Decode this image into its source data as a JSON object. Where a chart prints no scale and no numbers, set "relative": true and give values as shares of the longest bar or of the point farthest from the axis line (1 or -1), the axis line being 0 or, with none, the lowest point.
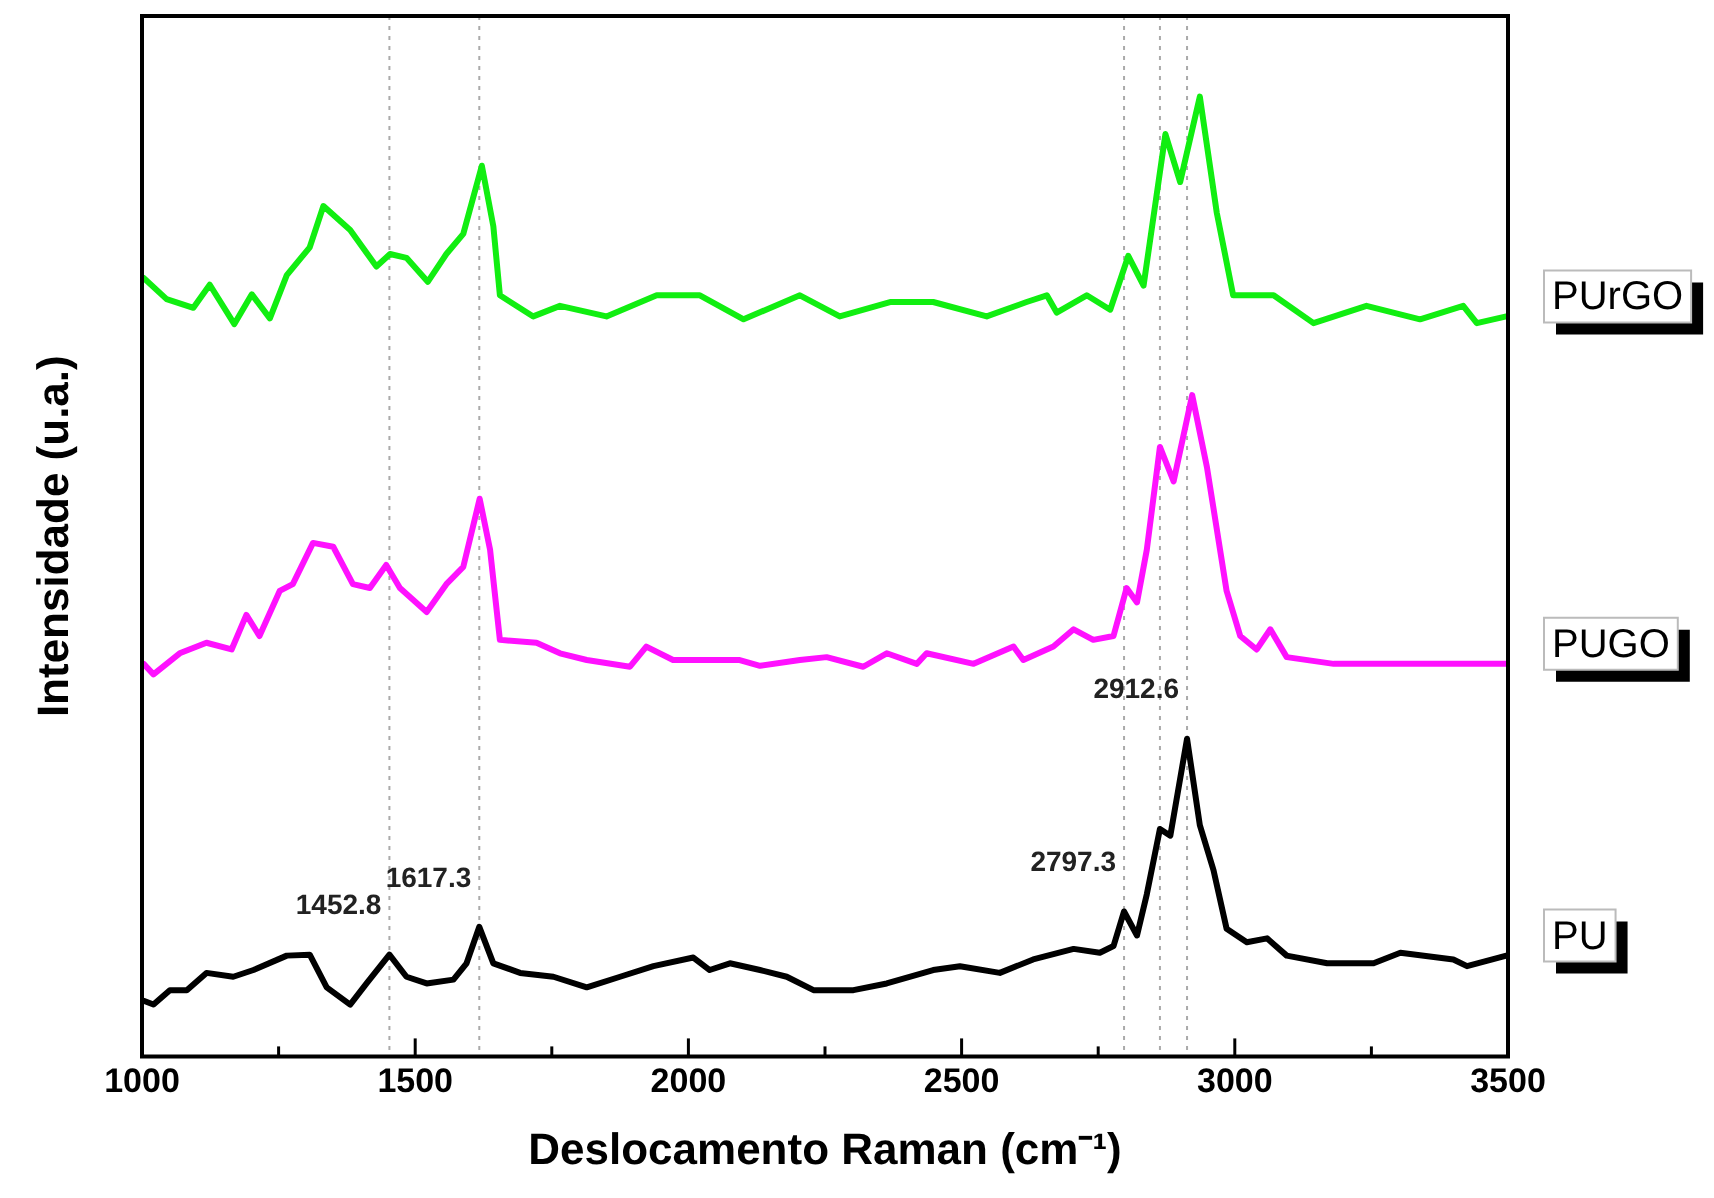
{
  "chart_data": {
    "type": "line",
    "xlabel": "Deslocamento Raman (cm⁻¹)",
    "ylabel": "Intensidade (u.a.)",
    "relative": true,
    "legend": false,
    "grid": false,
    "marker": "none",
    "line_style": "solid",
    "xlim": [
      1000,
      3500
    ],
    "xticks": [
      1000,
      {
        "value": 1250,
        "label": null
      },
      1500,
      {
        "value": 1750,
        "label": null
      },
      2000,
      {
        "value": 2250,
        "label": null
      },
      2500,
      {
        "value": 2750,
        "label": null
      },
      3000,
      {
        "value": 3250,
        "label": null
      },
      3500
    ],
    "series": [
      {
        "name": "PUrGO",
        "color": "#11ee11",
        "x": [
          1003,
          1045,
          1094,
          1124,
          1169,
          1201,
          1234,
          1265,
          1307,
          1332,
          1381,
          1429,
          1454,
          1484,
          1523,
          1557,
          1588,
          1622,
          1643,
          1655,
          1716,
          1765,
          1850,
          1942,
          2021,
          2101,
          2204,
          2277,
          2369,
          2448,
          2546,
          2619,
          2656,
          2674,
          2729,
          2772,
          2805,
          2833,
          2873,
          2900,
          2936,
          2967,
          2997,
          3071,
          3144,
          3241,
          3339,
          3418,
          3443,
          3497
        ],
        "values": [
          0.811,
          0.789,
          0.78,
          0.804,
          0.763,
          0.794,
          0.769,
          0.814,
          0.843,
          0.886,
          0.861,
          0.823,
          0.836,
          0.832,
          0.807,
          0.836,
          0.857,
          0.928,
          0.865,
          0.793,
          0.771,
          0.782,
          0.771,
          0.793,
          0.793,
          0.768,
          0.793,
          0.771,
          0.786,
          0.786,
          0.771,
          0.786,
          0.793,
          0.775,
          0.793,
          0.778,
          0.834,
          0.803,
          0.961,
          0.911,
          1,
          0.879,
          0.793,
          0.793,
          0.764,
          0.782,
          0.768,
          0.782,
          0.764,
          0.771
        ]
      },
      {
        "name": "PUGO",
        "color": "#ff11ff",
        "x": [
          1003,
          1021,
          1069,
          1118,
          1164,
          1191,
          1215,
          1252,
          1276,
          1313,
          1350,
          1386,
          1417,
          1447,
          1472,
          1521,
          1557,
          1588,
          1618,
          1637,
          1655,
          1722,
          1765,
          1814,
          1893,
          1923,
          1972,
          2094,
          2131,
          2204,
          2253,
          2320,
          2363,
          2418,
          2436,
          2522,
          2595,
          2613,
          2668,
          2705,
          2741,
          2778,
          2802,
          2821,
          2839,
          2863,
          2888,
          2922,
          2949,
          2985,
          3010,
          3040,
          3065,
          3095,
          3181,
          3303,
          3425,
          3497
        ],
        "values": [
          0.409,
          0.398,
          0.42,
          0.431,
          0.424,
          0.46,
          0.438,
          0.485,
          0.492,
          0.535,
          0.531,
          0.492,
          0.488,
          0.512,
          0.488,
          0.463,
          0.492,
          0.51,
          0.581,
          0.528,
          0.434,
          0.431,
          0.42,
          0.413,
          0.406,
          0.427,
          0.413,
          0.413,
          0.407,
          0.413,
          0.416,
          0.406,
          0.42,
          0.409,
          0.42,
          0.409,
          0.427,
          0.413,
          0.427,
          0.445,
          0.434,
          0.438,
          0.488,
          0.473,
          0.528,
          0.635,
          0.599,
          0.689,
          0.614,
          0.485,
          0.438,
          0.424,
          0.445,
          0.416,
          0.409,
          0.409,
          0.409,
          0.409
        ]
      },
      {
        "name": "PU",
        "color": "#000000",
        "x": [
          1003,
          1021,
          1051,
          1082,
          1118,
          1167,
          1204,
          1265,
          1307,
          1338,
          1381,
          1411,
          1452.8,
          1484,
          1521,
          1570,
          1594,
          1617.3,
          1643,
          1692,
          1753,
          1814,
          1875,
          1936,
          2009,
          2039,
          2076,
          2131,
          2180,
          2229,
          2302,
          2363,
          2448,
          2497,
          2570,
          2631,
          2705,
          2753,
          2778,
          2797.3,
          2821,
          2839,
          2863,
          2882,
          2912.6,
          2936,
          2961,
          2985,
          3022,
          3059,
          3095,
          3169,
          3254,
          3303,
          3400,
          3425,
          3497
        ],
        "values": [
          0.058,
          0.054,
          0.069,
          0.069,
          0.087,
          0.083,
          0.09,
          0.105,
          0.106,
          0.072,
          0.054,
          0.076,
          0.106,
          0.083,
          0.076,
          0.08,
          0.097,
          0.135,
          0.097,
          0.087,
          0.083,
          0.072,
          0.083,
          0.094,
          0.103,
          0.09,
          0.097,
          0.09,
          0.083,
          0.069,
          0.069,
          0.076,
          0.09,
          0.094,
          0.087,
          0.101,
          0.112,
          0.108,
          0.115,
          0.151,
          0.126,
          0.169,
          0.237,
          0.23,
          0.331,
          0.241,
          0.194,
          0.133,
          0.119,
          0.123,
          0.105,
          0.097,
          0.097,
          0.108,
          0.101,
          0.094,
          0.105
        ]
      }
    ],
    "ref_lines": [
      {
        "axis": "x",
        "value": 1452.8,
        "color": "#aaaaaa",
        "line_style": "dotted"
      },
      {
        "axis": "x",
        "value": 1617.3,
        "color": "#aaaaaa",
        "line_style": "dotted"
      },
      {
        "axis": "x",
        "value": 2797.3,
        "color": "#aaaaaa",
        "line_style": "dotted"
      },
      {
        "axis": "x",
        "value": 2863,
        "color": "#aaaaaa",
        "line_style": "dotted"
      },
      {
        "axis": "x",
        "value": 2912.6,
        "color": "#aaaaaa",
        "line_style": "dotted"
      }
    ],
    "annotations": [
      {
        "text": "1452.8",
        "x": 1452.8,
        "y": 0.106
      },
      {
        "text": "1617.3",
        "x": 1617.3,
        "y": 0.135
      },
      {
        "text": "2797.3",
        "x": 2797.3,
        "y": 0.151
      },
      {
        "text": "2912.6",
        "x": 2912.6,
        "y": 0.331
      }
    ]
  }
}
